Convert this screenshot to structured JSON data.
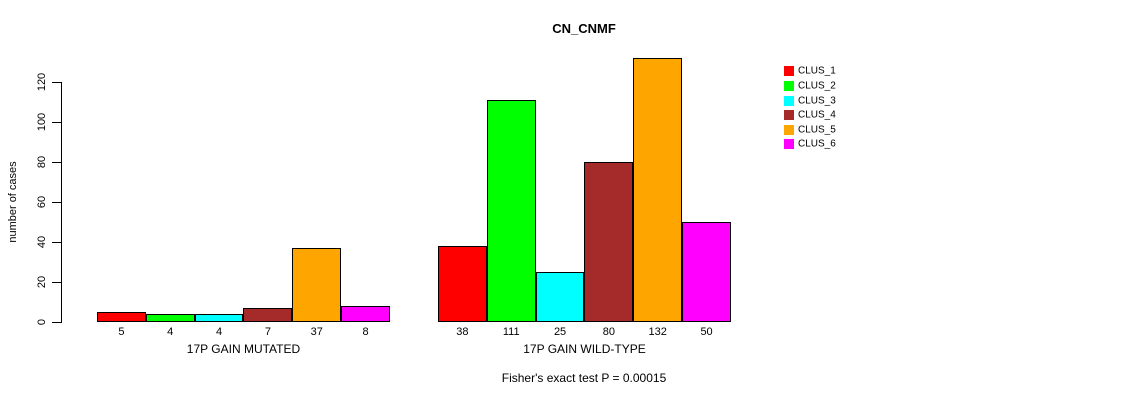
{
  "chart_data": {
    "type": "bar",
    "title": "CN_CNMF",
    "xlabel": "",
    "ylabel": "number of cases",
    "ylim": [
      0,
      140
    ],
    "yticks": [
      0,
      20,
      40,
      60,
      80,
      100,
      120
    ],
    "grid": false,
    "legend_position": "right",
    "legend": [
      {
        "name": "CLUS_1",
        "color": "#ff0000"
      },
      {
        "name": "CLUS_2",
        "color": "#00ff00"
      },
      {
        "name": "CLUS_3",
        "color": "#00ffff"
      },
      {
        "name": "CLUS_4",
        "color": "#a52a2a"
      },
      {
        "name": "CLUS_5",
        "color": "#ffa500"
      },
      {
        "name": "CLUS_6",
        "color": "#ff00ff"
      }
    ],
    "groups": [
      {
        "label": "17P GAIN MUTATED",
        "values": [
          5,
          4,
          4,
          7,
          37,
          8
        ]
      },
      {
        "label": "17P GAIN WILD-TYPE",
        "values": [
          38,
          111,
          25,
          80,
          132,
          50
        ]
      }
    ],
    "annotation": "Fisher's exact test P = 0.00015",
    "bar_border_color": "#000000",
    "axis_color": "#000000"
  }
}
